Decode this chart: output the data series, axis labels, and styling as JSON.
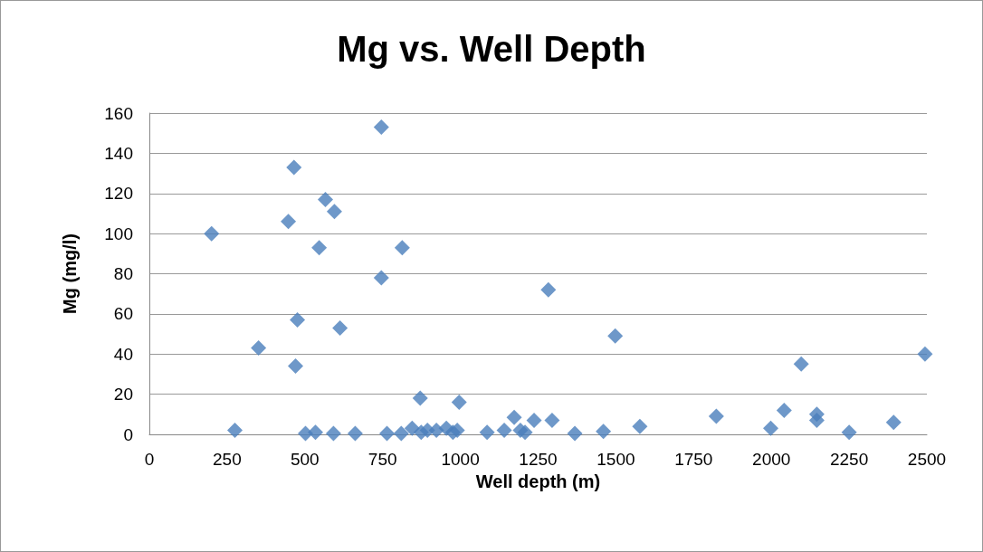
{
  "chart_data": {
    "type": "scatter",
    "title": "Mg vs. Well Depth",
    "xlabel": "Well depth (m)",
    "ylabel": "Mg (mg/l)",
    "x": [
      200,
      275,
      351,
      447,
      465,
      470,
      476,
      546,
      566,
      595,
      613,
      746,
      746,
      813,
      871,
      996,
      1283,
      1498,
      2096,
      2494,
      2041,
      1998,
      2146,
      2146,
      2250,
      2393,
      1823,
      1577,
      1460,
      1368,
      1295,
      1237,
      1173,
      502,
      534,
      592,
      662,
      764,
      810,
      845,
      874,
      894,
      923,
      955,
      976,
      990,
      1086,
      1141,
      1193,
      1208
    ],
    "values": [
      100,
      2,
      43,
      106,
      133,
      34,
      57,
      93,
      117,
      111,
      53,
      153,
      78,
      93,
      18,
      16,
      72,
      49,
      35,
      40,
      12,
      3,
      10,
      7,
      1,
      6,
      9,
      4,
      1.5,
      0.5,
      7,
      7,
      8.5,
      0.5,
      1,
      0.5,
      0.5,
      0.5,
      0.5,
      3,
      1,
      2,
      2,
      3,
      1,
      2,
      1,
      2,
      2,
      1
    ],
    "color": "#4a7ebb",
    "marker": "diamond",
    "xlim": [
      0,
      2500
    ],
    "xticks": [
      0,
      250,
      500,
      750,
      1000,
      1250,
      1500,
      1750,
      2000,
      2250,
      2500
    ],
    "ylim": [
      0,
      160
    ],
    "yticks": [
      0,
      20,
      40,
      60,
      80,
      100,
      120,
      140,
      160
    ],
    "grid": "y"
  }
}
